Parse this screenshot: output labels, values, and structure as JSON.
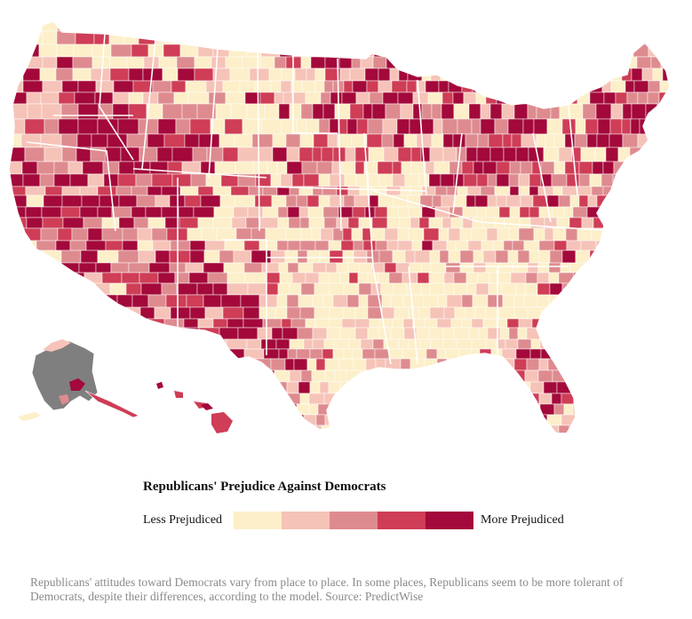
{
  "legend": {
    "title": "Republicans' Prejudice Against Democrats",
    "low_label": "Less Prejudiced",
    "high_label": "More Prejudiced",
    "colors": [
      "#fcefc9",
      "#f6c3b8",
      "#de8b8f",
      "#cf3d56",
      "#a3093a"
    ]
  },
  "map": {
    "no_data_color": "#7f7f7f",
    "border_color": "#ffffff"
  },
  "caption": "Republicans' attitudes toward Democrats vary from place to place. In some places, Republicans seem to be more tolerant of Democrats, despite their differences, according to the model. Source: PredictWise"
}
